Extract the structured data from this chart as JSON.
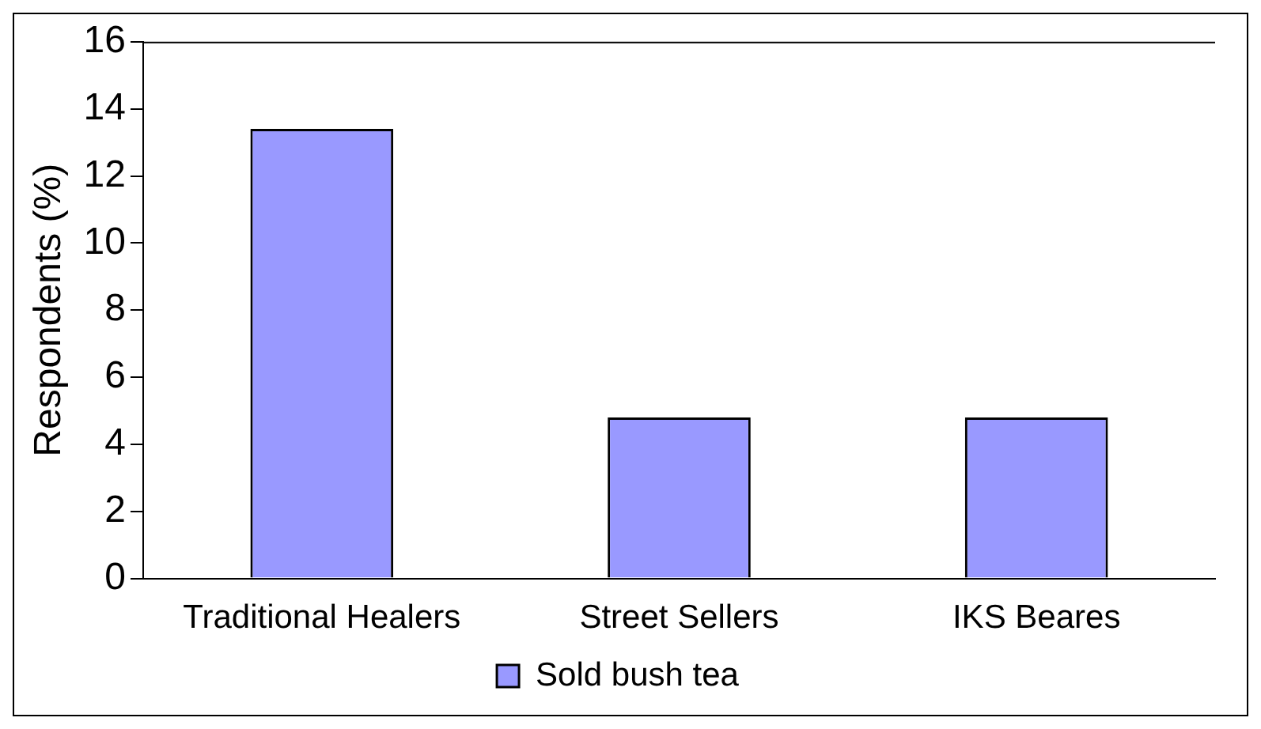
{
  "chart_data": {
    "type": "bar",
    "ylabel": "Respondents (%)",
    "categories": [
      "Traditional Healers",
      "Street Sellers",
      "IKS Beares"
    ],
    "series": [
      {
        "name": "Sold bush tea",
        "color": "#9999ff",
        "values": [
          13.4,
          4.8,
          4.8
        ]
      }
    ],
    "ylim": [
      0,
      16
    ],
    "yticks": [
      0,
      2,
      4,
      6,
      8,
      10,
      12,
      14,
      16
    ],
    "grid": false,
    "legend": "bottom"
  }
}
